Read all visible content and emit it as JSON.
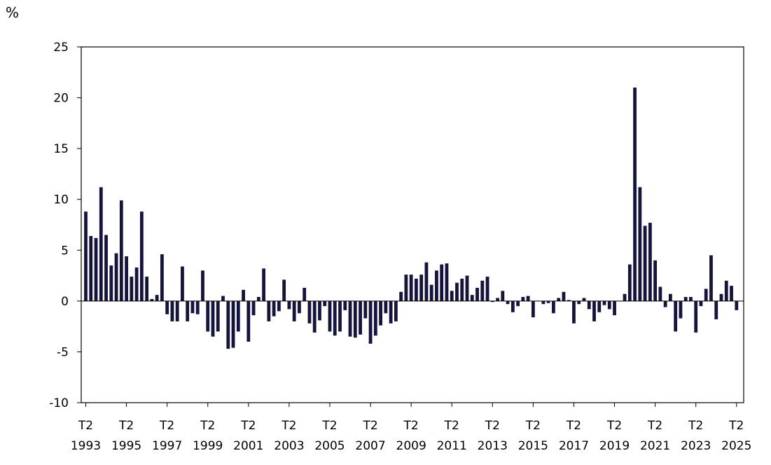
{
  "chart_data": {
    "type": "bar",
    "unit_label": "%",
    "title": "",
    "xlabel": "",
    "ylabel": "%",
    "ylim": [
      -10,
      25
    ],
    "yticks": [
      25,
      20,
      15,
      10,
      5,
      0,
      -5,
      -10
    ],
    "grid": false,
    "legend": "none",
    "bar_color": "#14143c",
    "x_start": "1993 T2",
    "tick_labels": [
      {
        "quarter": "T2",
        "year": "1993",
        "index": 0
      },
      {
        "quarter": "T2",
        "year": "1995",
        "index": 8
      },
      {
        "quarter": "T2",
        "year": "1997",
        "index": 16
      },
      {
        "quarter": "T2",
        "year": "1999",
        "index": 24
      },
      {
        "quarter": "T2",
        "year": "2001",
        "index": 32
      },
      {
        "quarter": "T2",
        "year": "2003",
        "index": 40
      },
      {
        "quarter": "T2",
        "year": "2005",
        "index": 48
      },
      {
        "quarter": "T2",
        "year": "2007",
        "index": 56
      },
      {
        "quarter": "T2",
        "year": "2009",
        "index": 64
      },
      {
        "quarter": "T2",
        "year": "2011",
        "index": 72
      },
      {
        "quarter": "T2",
        "year": "2013",
        "index": 80
      },
      {
        "quarter": "T2",
        "year": "2015",
        "index": 88
      },
      {
        "quarter": "T2",
        "year": "2017",
        "index": 96
      },
      {
        "quarter": "T2",
        "year": "2019",
        "index": 104
      },
      {
        "quarter": "T2",
        "year": "2021",
        "index": 112
      },
      {
        "quarter": "T2",
        "year": "2023",
        "index": 120
      },
      {
        "quarter": "T2",
        "year": "2025",
        "index": 128
      }
    ],
    "values": [
      8.8,
      6.4,
      6.2,
      11.2,
      6.5,
      3.5,
      4.7,
      9.9,
      4.4,
      2.4,
      3.3,
      8.8,
      2.4,
      0.2,
      0.6,
      4.6,
      -1.3,
      -2.0,
      -2.0,
      3.4,
      -2.0,
      -1.2,
      -1.3,
      3.0,
      -3.0,
      -3.5,
      -3.0,
      0.5,
      -4.7,
      -4.6,
      -3.0,
      1.1,
      -4.0,
      -1.4,
      0.4,
      3.2,
      -2.0,
      -1.5,
      -1.0,
      2.1,
      -0.8,
      -2.0,
      -1.2,
      1.3,
      -2.2,
      -3.1,
      -1.9,
      -0.5,
      -3.0,
      -3.4,
      -3.0,
      -0.9,
      -3.5,
      -3.6,
      -3.3,
      -1.7,
      -4.2,
      -3.4,
      -2.4,
      -1.2,
      -2.2,
      -2.0,
      0.9,
      2.6,
      2.6,
      2.2,
      2.6,
      3.8,
      1.6,
      3.0,
      3.6,
      3.7,
      1.0,
      1.8,
      2.2,
      2.5,
      0.6,
      1.3,
      2.0,
      2.4,
      -0.1,
      0.3,
      1.0,
      -0.3,
      -1.1,
      -0.5,
      0.4,
      0.5,
      -1.6,
      0.0,
      -0.3,
      -0.2,
      -1.2,
      0.3,
      0.9,
      0.1,
      -2.2,
      -0.3,
      0.3,
      -0.8,
      -2.0,
      -1.1,
      -0.4,
      -0.8,
      -1.4,
      0.0,
      0.7,
      3.6,
      21.0,
      11.2,
      7.4,
      7.7,
      4.0,
      1.4,
      -0.6,
      0.7,
      -3.0,
      -1.7,
      0.4,
      0.4,
      -3.1,
      -0.5,
      1.2,
      4.5,
      -1.8,
      0.7,
      2.0,
      1.5,
      -0.9
    ]
  }
}
